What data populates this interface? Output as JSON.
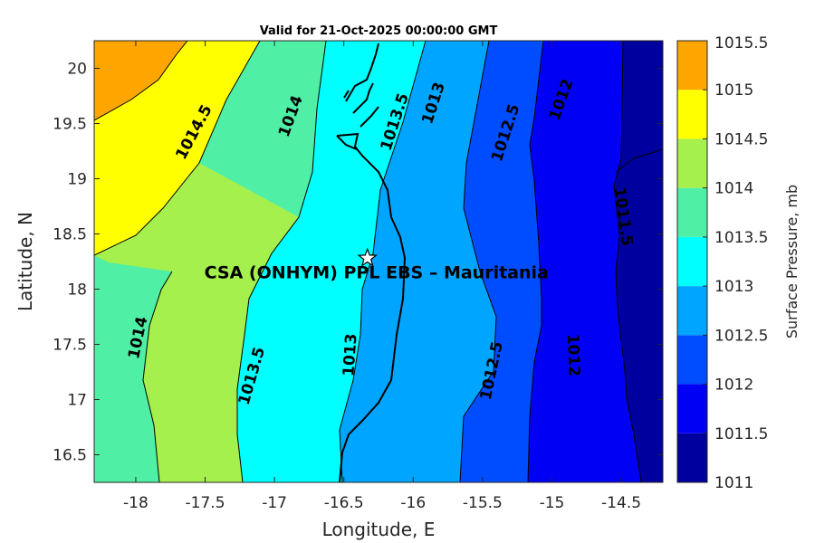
{
  "chart_data": {
    "type": "filled-contour",
    "title": "Valid for 21-Oct-2025 00:00:00 GMT",
    "xlabel": "Longitude, E",
    "ylabel": "Latitude, N",
    "xlim": [
      -18.3,
      -14.2
    ],
    "ylim": [
      16.25,
      20.25
    ],
    "xticks": [
      "-18",
      "-17.5",
      "-17",
      "-16.5",
      "-16",
      "-15.5",
      "-15",
      "-14.5"
    ],
    "yticks": [
      "16.5",
      "17",
      "17.5",
      "18",
      "18.5",
      "19",
      "19.5",
      "20"
    ],
    "colorbar": {
      "label": "Surface Pressure, mb",
      "range": [
        1011,
        1015.5
      ],
      "tick_labels": [
        "1011",
        "1011.5",
        "1012",
        "1012.5",
        "1013",
        "1013.5",
        "1014",
        "1014.5",
        "1015",
        "1015.5"
      ],
      "colors": [
        "#00009f",
        "#0000f5",
        "#004cff",
        "#00a5ff",
        "#00ffff",
        "#4ff0a5",
        "#a5f04c",
        "#ffff00",
        "#ffa500",
        "#ff5500"
      ]
    },
    "contour_labels": [
      {
        "text": "1014.5",
        "lon": -17.55,
        "lat": 19.45
      },
      {
        "text": "1014",
        "lon": -16.85,
        "lat": 19.6
      },
      {
        "text": "1013.5",
        "lon": -16.1,
        "lat": 19.55
      },
      {
        "text": "1013",
        "lon": -15.82,
        "lat": 19.72
      },
      {
        "text": "1012.5",
        "lon": -15.3,
        "lat": 19.45
      },
      {
        "text": "1012",
        "lon": -14.9,
        "lat": 19.75
      },
      {
        "text": "1011.5",
        "lon": -14.52,
        "lat": 18.7
      },
      {
        "text": "1014",
        "lon": -17.95,
        "lat": 17.6
      },
      {
        "text": "1013.5",
        "lon": -17.13,
        "lat": 17.25
      },
      {
        "text": "1013",
        "lon": -16.42,
        "lat": 17.45
      },
      {
        "text": "1012.5",
        "lon": -15.4,
        "lat": 17.3
      },
      {
        "text": "1012",
        "lon": -14.88,
        "lat": 17.45
      }
    ],
    "site": {
      "label": "CSA (ONHYM) PPL EBS  – Mauritania",
      "lon": -16.33,
      "lat": 18.28
    }
  }
}
